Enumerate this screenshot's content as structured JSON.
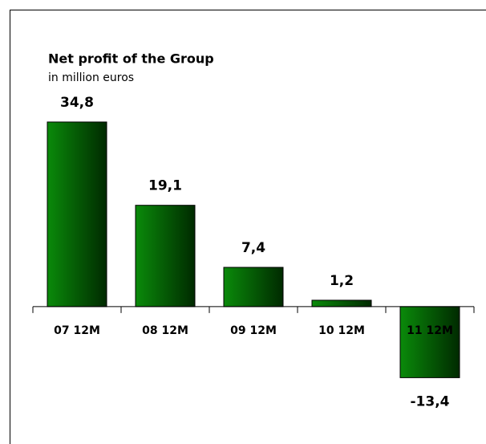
{
  "chart_data": {
    "type": "bar",
    "title": "Net profit of the Group",
    "subtitle": "in million euros",
    "categories": [
      "07 12M",
      "08 12M",
      "09 12M",
      "10 12M",
      "11 12M"
    ],
    "values": [
      34.8,
      19.1,
      7.4,
      1.2,
      -13.4
    ],
    "value_labels": [
      "34,8",
      "19,1",
      "7,4",
      "1,2",
      "-13,4"
    ],
    "color": "#0a8a0a",
    "ylim": [
      -20,
      40
    ]
  }
}
